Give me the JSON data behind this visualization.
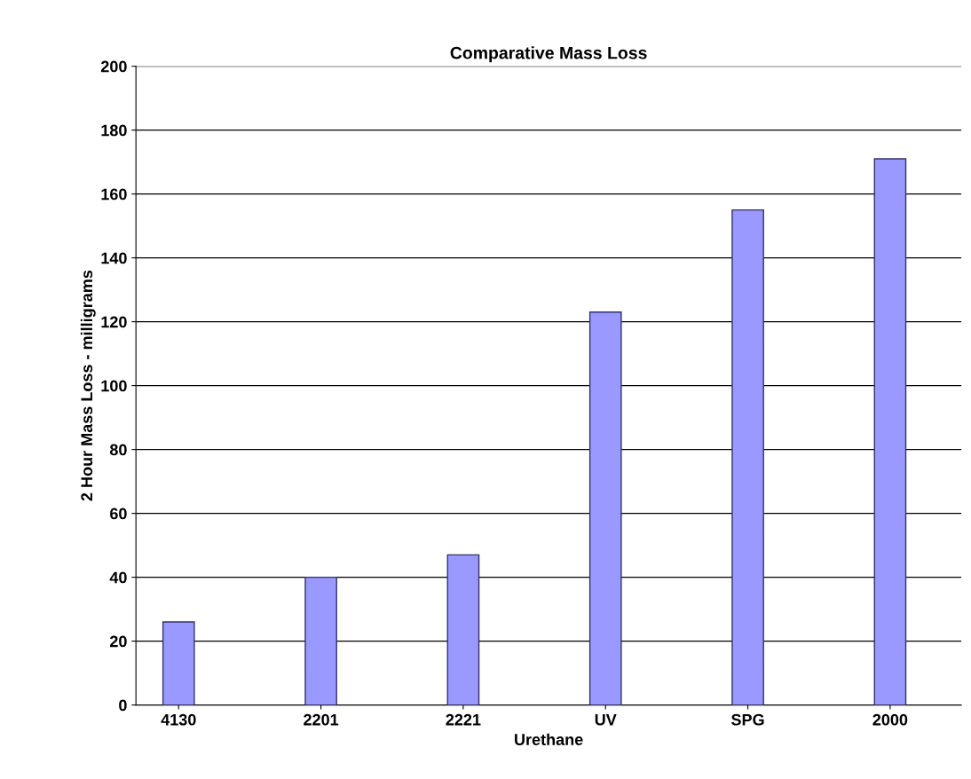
{
  "chart_data": {
    "type": "bar",
    "title": "Comparative Mass Loss",
    "xlabel": "Urethane",
    "ylabel": "2 Hour Mass Loss - milligrams",
    "categories": [
      "4130",
      "2201",
      "2221",
      "UV",
      "SPG",
      "2000"
    ],
    "values": [
      26,
      40,
      47,
      123,
      155,
      171
    ],
    "color": "#9999ff",
    "ylim": [
      0,
      200
    ],
    "yticks": [
      0,
      20,
      40,
      60,
      80,
      100,
      120,
      140,
      160,
      180,
      200
    ],
    "grid": "y",
    "legend": false
  }
}
